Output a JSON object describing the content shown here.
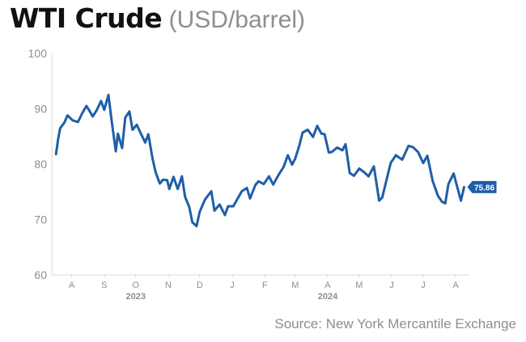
{
  "header": {
    "title": "WTI Crude",
    "subtitle": "(USD/barrel)"
  },
  "source": "Source: New York Mercantile Exchange",
  "colors": {
    "line": "#1f5ea8",
    "label_bg": "#1f5ea8",
    "axis_text": "#8e8e8e",
    "grid": "#d9d9d9"
  },
  "chart_data": {
    "type": "line",
    "title": "WTI Crude",
    "subtitle": "(USD/barrel)",
    "ylim": [
      60,
      100
    ],
    "y_ticks": [
      60,
      70,
      80,
      90,
      100
    ],
    "x_tick_labels": [
      "A",
      "S",
      "O",
      "N",
      "D",
      "J",
      "F",
      "M",
      "A",
      "M",
      "J",
      "J",
      "A"
    ],
    "x_tick_dates": [
      "2023-08-15",
      "2023-09-15",
      "2023-10-15",
      "2023-11-15",
      "2023-12-15",
      "2024-01-15",
      "2024-02-15",
      "2024-03-15",
      "2024-04-15",
      "2024-05-15",
      "2024-06-15",
      "2024-07-15",
      "2024-08-15"
    ],
    "year_labels": [
      {
        "label": "2023",
        "date": "2023-10-15"
      },
      {
        "label": "2024",
        "date": "2024-04-15"
      }
    ],
    "last_value_label": "75.86",
    "grid": false,
    "series": [
      {
        "x": [
          "2023-07-31",
          "2023-08-02",
          "2023-08-04",
          "2023-08-08",
          "2023-08-11",
          "2023-08-16",
          "2023-08-21",
          "2023-08-25",
          "2023-08-29",
          "2023-09-01",
          "2023-09-04",
          "2023-09-08",
          "2023-09-12",
          "2023-09-15",
          "2023-09-19",
          "2023-09-22",
          "2023-09-26",
          "2023-09-28",
          "2023-10-02",
          "2023-10-05",
          "2023-10-09",
          "2023-10-12",
          "2023-10-16",
          "2023-10-19",
          "2023-10-24",
          "2023-10-27",
          "2023-10-31",
          "2023-11-03",
          "2023-11-07",
          "2023-11-10",
          "2023-11-14",
          "2023-11-16",
          "2023-11-20",
          "2023-11-24",
          "2023-11-28",
          "2023-12-01",
          "2023-12-05",
          "2023-12-08",
          "2023-12-12",
          "2023-12-15",
          "2023-12-20",
          "2023-12-26",
          "2023-12-29",
          "2024-01-03",
          "2024-01-08",
          "2024-01-11",
          "2024-01-16",
          "2024-01-19",
          "2024-01-24",
          "2024-01-29",
          "2024-02-01",
          "2024-02-06",
          "2024-02-09",
          "2024-02-14",
          "2024-02-19",
          "2024-02-23",
          "2024-02-28",
          "2024-03-04",
          "2024-03-08",
          "2024-03-12",
          "2024-03-15",
          "2024-03-19",
          "2024-03-22",
          "2024-03-27",
          "2024-04-01",
          "2024-04-05",
          "2024-04-09",
          "2024-04-12",
          "2024-04-16",
          "2024-04-19",
          "2024-04-24",
          "2024-04-29",
          "2024-05-02",
          "2024-05-06",
          "2024-05-10",
          "2024-05-15",
          "2024-05-20",
          "2024-05-24",
          "2024-05-29",
          "2024-06-03",
          "2024-06-06",
          "2024-06-11",
          "2024-06-14",
          "2024-06-19",
          "2024-06-25",
          "2024-07-01",
          "2024-07-05",
          "2024-07-10",
          "2024-07-15",
          "2024-07-19",
          "2024-07-24",
          "2024-07-29",
          "2024-08-02",
          "2024-08-05",
          "2024-08-08",
          "2024-08-13",
          "2024-08-16",
          "2024-08-20",
          "2024-08-23"
        ],
        "y": [
          81.8,
          84.5,
          86.5,
          87.5,
          88.8,
          87.9,
          87.6,
          89.2,
          90.5,
          89.6,
          88.6,
          89.8,
          91.4,
          89.8,
          92.5,
          87.9,
          82.3,
          85.5,
          82.9,
          88.4,
          89.5,
          86.2,
          87.1,
          85.9,
          83.9,
          85.4,
          81.0,
          78.5,
          76.5,
          77.2,
          77.1,
          75.5,
          77.7,
          75.5,
          77.8,
          74.1,
          72.3,
          69.5,
          68.8,
          71.4,
          73.6,
          75.1,
          71.6,
          72.7,
          70.8,
          72.4,
          72.4,
          73.4,
          75.1,
          75.7,
          73.8,
          76.2,
          76.9,
          76.4,
          77.8,
          76.3,
          78.0,
          79.5,
          81.6,
          79.9,
          81.0,
          83.4,
          85.7,
          86.2,
          84.9,
          86.9,
          85.5,
          85.4,
          82.1,
          82.2,
          83.0,
          82.5,
          83.6,
          78.4,
          77.9,
          79.2,
          78.5,
          77.8,
          79.6,
          73.4,
          74.0,
          77.9,
          80.2,
          81.6,
          80.8,
          83.3,
          83.1,
          82.2,
          80.2,
          81.5,
          77.0,
          74.3,
          73.2,
          72.9,
          76.4,
          78.3,
          76.2,
          73.4,
          75.86
        ]
      }
    ]
  }
}
